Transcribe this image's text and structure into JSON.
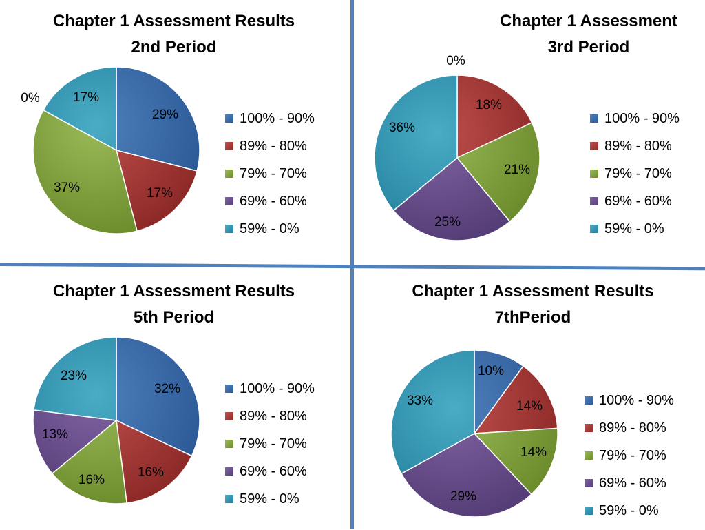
{
  "legend_colors": [
    "#4f81bd",
    "#c0504d",
    "#9bbb59",
    "#8064a2",
    "#4bacc6"
  ],
  "legend_dark": [
    "#2c5a97",
    "#8d2a28",
    "#6c8c2d",
    "#553d77",
    "#21809c"
  ],
  "chart_data": [
    {
      "type": "pie",
      "title": "Chapter 1 Assessment Results",
      "subtitle": "2nd Period",
      "categories": [
        "100% - 90%",
        "89% - 80%",
        "79% - 70%",
        "69% - 60%",
        "59% - 0%"
      ],
      "values": [
        29,
        17,
        37,
        0,
        17
      ],
      "labels": [
        "29%",
        "17%",
        "37%",
        "0%",
        "17%"
      ],
      "legend": "right"
    },
    {
      "type": "pie",
      "title": "Chapter 1 Assessment",
      "subtitle": "3rd Period",
      "categories": [
        "100% - 90%",
        "89% - 80%",
        "79% - 70%",
        "69% - 60%",
        "59% - 0%"
      ],
      "values": [
        0,
        18,
        21,
        25,
        36
      ],
      "labels": [
        "0%",
        "18%",
        "21%",
        "25%",
        "36%"
      ],
      "legend": "right"
    },
    {
      "type": "pie",
      "title": "Chapter 1 Assessment Results",
      "subtitle": "5th Period",
      "categories": [
        "100% - 90%",
        "89% - 80%",
        "79% - 70%",
        "69% - 60%",
        "59% - 0%"
      ],
      "values": [
        32,
        16,
        16,
        13,
        23
      ],
      "labels": [
        "32%",
        "16%",
        "16%",
        "13%",
        "23%"
      ],
      "legend": "right"
    },
    {
      "type": "pie",
      "title": "Chapter 1 Assessment Results",
      "subtitle": "7thPeriod",
      "categories": [
        "100% - 90%",
        "89% - 80%",
        "79% - 70%",
        "69% - 60%",
        "59% - 0%"
      ],
      "values": [
        10,
        14,
        14,
        29,
        33
      ],
      "labels": [
        "10%",
        "14%",
        "14%",
        "29%",
        "33%"
      ],
      "legend": "right"
    }
  ]
}
